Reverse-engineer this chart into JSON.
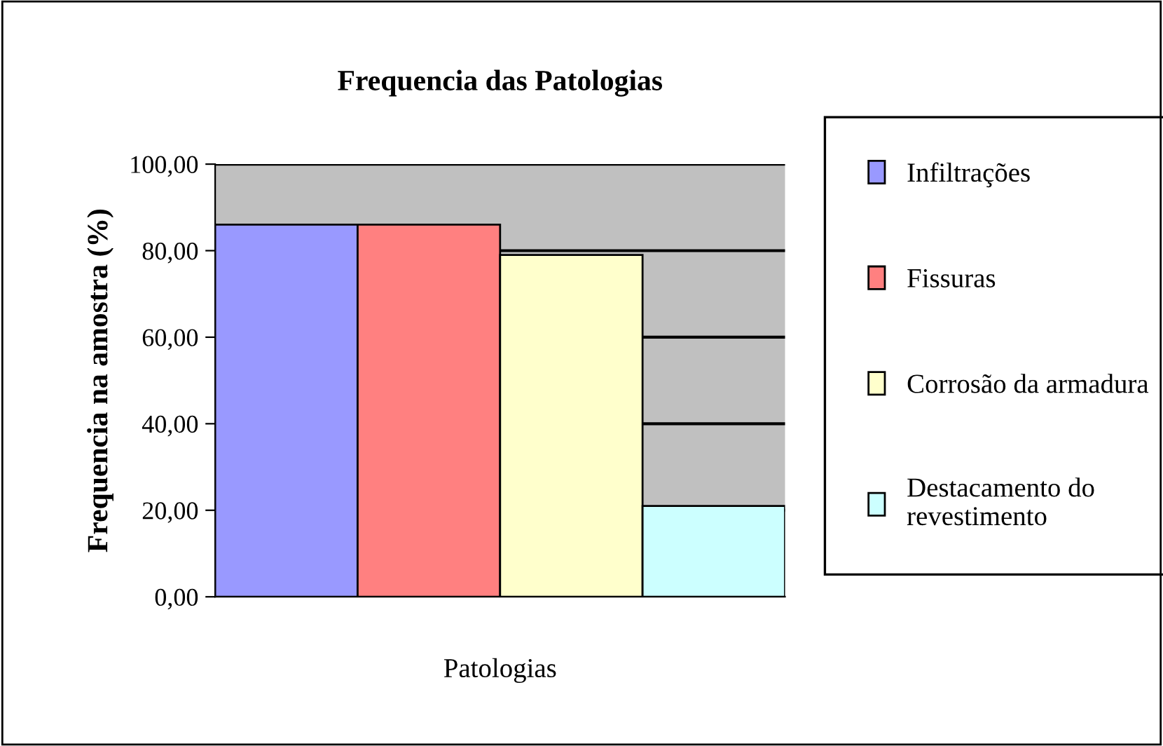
{
  "chart_data": {
    "type": "bar",
    "title": "Frequencia das Patologias",
    "xlabel": "Patologias",
    "ylabel": "Frequencia na amostra (%)",
    "categories": [
      null
    ],
    "series": [
      {
        "name": "Infiltrações",
        "color": "#9999ff",
        "values": [
          86
        ]
      },
      {
        "name": "Fissuras",
        "color": "#ff8080",
        "values": [
          86
        ]
      },
      {
        "name": "Corrosão da armadura",
        "color": "#ffffcc",
        "values": [
          79
        ]
      },
      {
        "name": "Destacamento do\nrevestimento",
        "color": "#ccffff",
        "values": [
          21
        ]
      }
    ],
    "ylim": [
      0,
      100
    ],
    "yticks": [
      {
        "value": 0,
        "label": "0,00"
      },
      {
        "value": 20,
        "label": "20,00"
      },
      {
        "value": 40,
        "label": "40,00"
      },
      {
        "value": 60,
        "label": "60,00"
      },
      {
        "value": 80,
        "label": "80,00"
      },
      {
        "value": 100,
        "label": "100,00"
      }
    ],
    "grid": "y",
    "legend": "right"
  }
}
